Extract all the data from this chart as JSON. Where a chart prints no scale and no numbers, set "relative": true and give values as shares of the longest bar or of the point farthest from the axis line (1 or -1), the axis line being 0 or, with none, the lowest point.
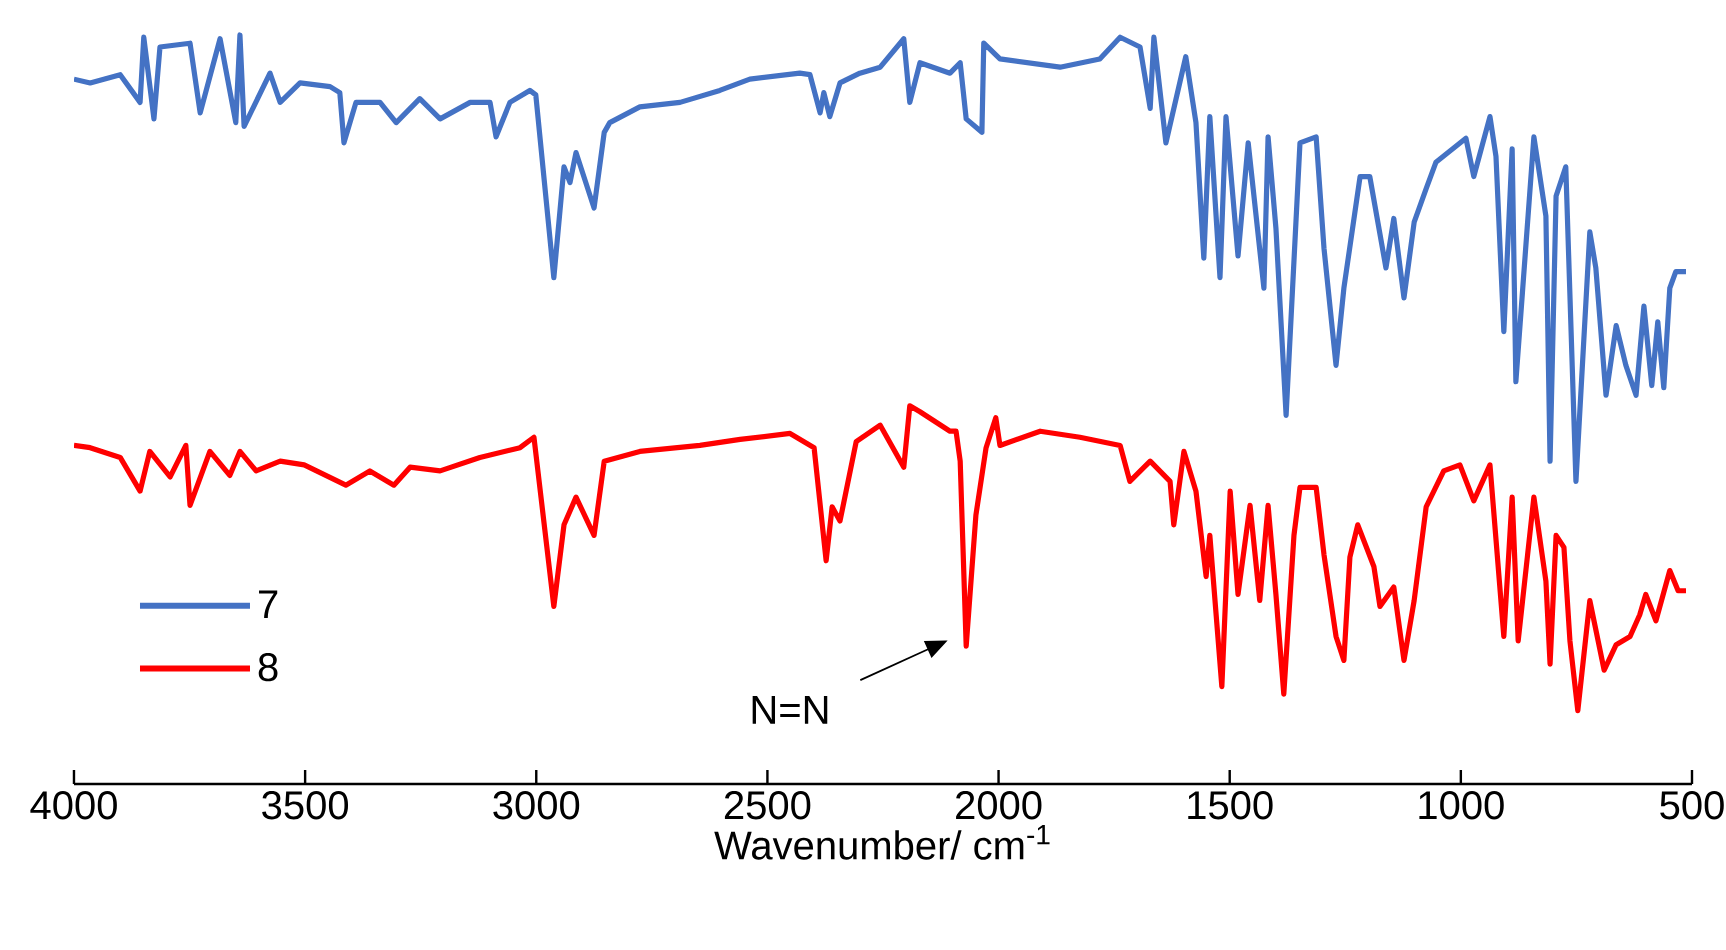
{
  "chart_data": {
    "type": "line",
    "relative": true,
    "xlabel": "Wavenumber/ cm$^{-1}$",
    "xlim": [
      4000,
      500
    ],
    "xticks": [
      4000,
      3500,
      3000,
      2500,
      2000,
      1500,
      1000,
      500
    ],
    "legend": "bottom left",
    "line_style": "solid",
    "marker": "none",
    "annotations": [
      "N=N"
    ],
    "series": [
      {
        "name": "7",
        "color": "#4472c4",
        "x": [
          4000,
          3965,
          3900,
          3857,
          3849,
          3827,
          3814,
          3749,
          3727,
          3684,
          3650,
          3641,
          3632,
          3576,
          3554,
          3511,
          3446,
          3425,
          3416,
          3390,
          3338,
          3303,
          3252,
          3208,
          3143,
          3100,
          3087,
          3057,
          3014,
          3001,
          2962,
          2940,
          2927,
          2914,
          2875,
          2853,
          2841,
          2776,
          2689,
          2603,
          2538,
          2430,
          2408,
          2386,
          2378,
          2365,
          2343,
          2300,
          2256,
          2205,
          2192,
          2170,
          2105,
          2083,
          2070,
          2036,
          2032,
          1997,
          1867,
          1781,
          1737,
          1694,
          1672,
          1664,
          1638,
          1595,
          1573,
          1556,
          1543,
          1521,
          1508,
          1482,
          1460,
          1426,
          1417,
          1400,
          1378,
          1348,
          1313,
          1296,
          1270,
          1253,
          1218,
          1197,
          1162,
          1145,
          1123,
          1101,
          1075,
          1054,
          989,
          972,
          937,
          924,
          907,
          889,
          881,
          842,
          816,
          807,
          794,
          773,
          751,
          721,
          708,
          686,
          664,
          643,
          621,
          604,
          587,
          574,
          561,
          548,
          535,
          513
        ],
        "values": [
          0.941,
          0.936,
          0.947,
          0.91,
          0.997,
          0.888,
          0.984,
          0.989,
          0.896,
          0.995,
          0.883,
          1.0,
          0.878,
          0.949,
          0.91,
          0.936,
          0.931,
          0.923,
          0.856,
          0.91,
          0.91,
          0.883,
          0.915,
          0.888,
          0.91,
          0.91,
          0.864,
          0.91,
          0.926,
          0.92,
          0.676,
          0.824,
          0.803,
          0.843,
          0.769,
          0.87,
          0.883,
          0.904,
          0.91,
          0.926,
          0.941,
          0.949,
          0.947,
          0.896,
          0.923,
          0.891,
          0.936,
          0.949,
          0.957,
          0.995,
          0.91,
          0.963,
          0.949,
          0.963,
          0.888,
          0.87,
          0.989,
          0.968,
          0.957,
          0.968,
          0.997,
          0.984,
          0.902,
          0.997,
          0.856,
          0.971,
          0.883,
          0.702,
          0.891,
          0.676,
          0.891,
          0.705,
          0.856,
          0.662,
          0.864,
          0.742,
          0.492,
          0.856,
          0.864,
          0.715,
          0.559,
          0.662,
          0.811,
          0.811,
          0.689,
          0.755,
          0.649,
          0.75,
          0.795,
          0.83,
          0.862,
          0.811,
          0.891,
          0.838,
          0.604,
          0.848,
          0.537,
          0.864,
          0.758,
          0.431,
          0.785,
          0.824,
          0.404,
          0.737,
          0.689,
          0.519,
          0.612,
          0.559,
          0.519,
          0.638,
          0.532,
          0.617,
          0.529,
          0.662,
          0.684,
          0.684
        ]
      },
      {
        "name": "8",
        "color": "#ff0000",
        "x": [
          4000,
          3965,
          3900,
          3857,
          3836,
          3792,
          3758,
          3749,
          3706,
          3663,
          3641,
          3606,
          3554,
          3502,
          3412,
          3360,
          3308,
          3273,
          3208,
          3122,
          3035,
          3005,
          2962,
          2940,
          2914,
          2875,
          2853,
          2776,
          2646,
          2559,
          2451,
          2399,
          2373,
          2360,
          2343,
          2308,
          2256,
          2205,
          2192,
          2170,
          2105,
          2092,
          2083,
          2070,
          2049,
          2027,
          2006,
          1997,
          1910,
          1824,
          1737,
          1716,
          1672,
          1629,
          1621,
          1599,
          1573,
          1551,
          1543,
          1517,
          1499,
          1482,
          1456,
          1435,
          1417,
          1400,
          1383,
          1361,
          1348,
          1313,
          1296,
          1270,
          1253,
          1240,
          1223,
          1188,
          1175,
          1145,
          1123,
          1101,
          1075,
          1037,
          1002,
          972,
          937,
          907,
          889,
          876,
          842,
          816,
          807,
          794,
          777,
          764,
          747,
          721,
          690,
          664,
          634,
          613,
          600,
          578,
          548,
          530,
          513
        ],
        "values": [
          0.452,
          0.449,
          0.436,
          0.391,
          0.444,
          0.41,
          0.452,
          0.372,
          0.444,
          0.412,
          0.444,
          0.418,
          0.431,
          0.426,
          0.399,
          0.418,
          0.399,
          0.423,
          0.418,
          0.436,
          0.449,
          0.463,
          0.237,
          0.346,
          0.383,
          0.332,
          0.431,
          0.444,
          0.452,
          0.46,
          0.468,
          0.449,
          0.298,
          0.37,
          0.351,
          0.457,
          0.479,
          0.423,
          0.505,
          0.497,
          0.471,
          0.471,
          0.431,
          0.184,
          0.359,
          0.449,
          0.489,
          0.452,
          0.471,
          0.463,
          0.452,
          0.404,
          0.431,
          0.404,
          0.346,
          0.444,
          0.391,
          0.277,
          0.332,
          0.13,
          0.391,
          0.253,
          0.372,
          0.245,
          0.372,
          0.253,
          0.12,
          0.332,
          0.396,
          0.396,
          0.306,
          0.197,
          0.165,
          0.303,
          0.346,
          0.29,
          0.237,
          0.263,
          0.165,
          0.245,
          0.37,
          0.418,
          0.426,
          0.378,
          0.426,
          0.197,
          0.383,
          0.191,
          0.383,
          0.271,
          0.16,
          0.332,
          0.316,
          0.191,
          0.098,
          0.245,
          0.152,
          0.186,
          0.197,
          0.226,
          0.253,
          0.218,
          0.285,
          0.258,
          0.258
        ]
      }
    ]
  }
}
